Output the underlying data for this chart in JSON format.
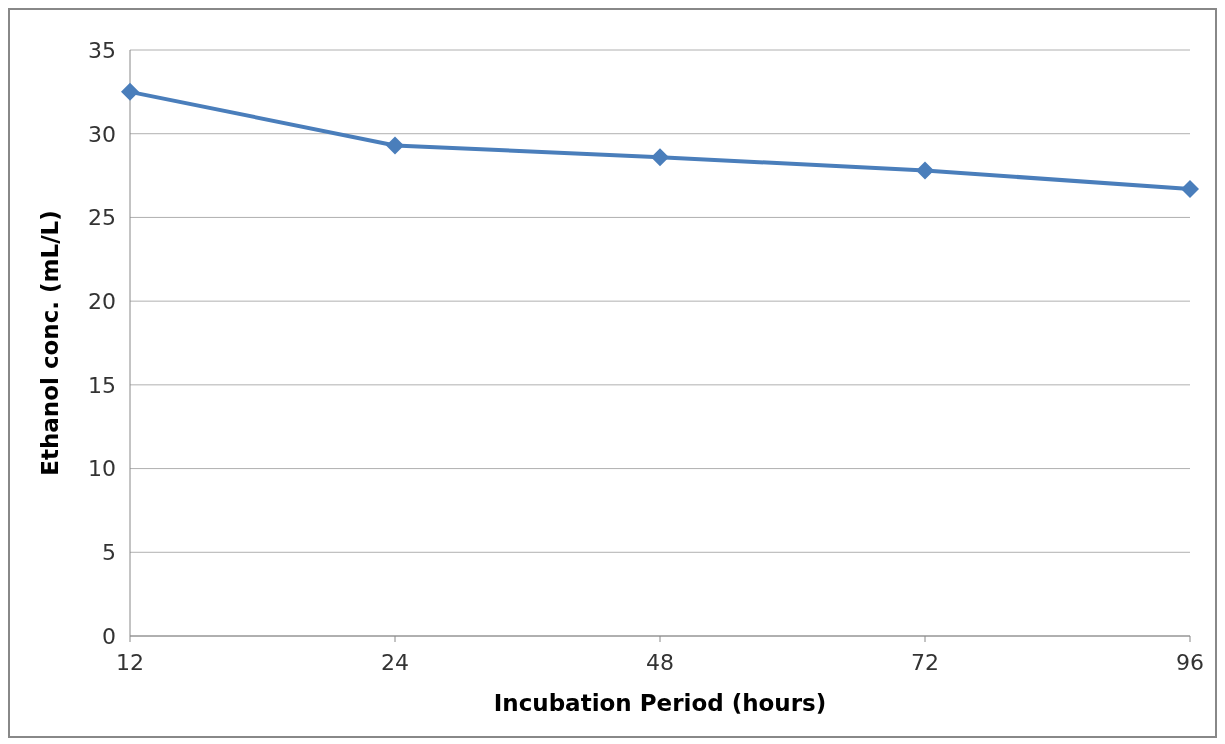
{
  "chart_data": {
    "type": "line",
    "xlabel": "Incubation Period (hours)",
    "ylabel": "Ethanol conc. (mL/L)",
    "categories": [
      "12",
      "24",
      "48",
      "72",
      "96"
    ],
    "series": [
      {
        "color": "#4a7ebb",
        "values": [
          32.5,
          29.3,
          28.6,
          27.8,
          26.7
        ]
      }
    ],
    "ylim": [
      0,
      35
    ],
    "yticks": [
      0,
      5,
      10,
      15,
      20,
      25,
      30,
      35
    ],
    "grid": "y",
    "marker": "diamond",
    "line_style": "solid"
  }
}
